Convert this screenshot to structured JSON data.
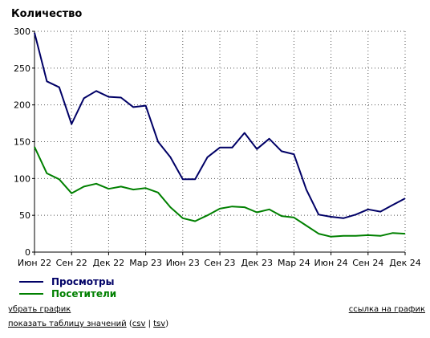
{
  "chart_data": {
    "type": "line",
    "title": "Количество",
    "x": [
      "2022-06",
      "2022-07",
      "2022-08",
      "2022-09",
      "2022-10",
      "2022-11",
      "2022-12",
      "2023-01",
      "2023-02",
      "2023-03",
      "2023-04",
      "2023-05",
      "2023-06",
      "2023-07",
      "2023-08",
      "2023-09",
      "2023-10",
      "2023-11",
      "2023-12",
      "2024-01",
      "2024-02",
      "2024-03",
      "2024-04",
      "2024-05",
      "2024-06",
      "2024-07",
      "2024-08",
      "2024-09",
      "2024-10",
      "2024-11",
      "2024-12"
    ],
    "x_tick_labels": [
      "Июн 22",
      "Сен 22",
      "Дек 22",
      "Мар 23",
      "Июн 23",
      "Сен 23",
      "Дек 23",
      "Мар 24",
      "Июн 24",
      "Сен 24",
      "Дек 24"
    ],
    "y_ticks": [
      0,
      50,
      100,
      150,
      200,
      250,
      300
    ],
    "ylim": [
      0,
      300
    ],
    "grid": true,
    "legend_position": "bottom-left",
    "series": [
      {
        "name": "Просмотры",
        "color": "#000066",
        "values": [
          298,
          232,
          224,
          174,
          209,
          219,
          211,
          210,
          197,
          199,
          150,
          129,
          99,
          99,
          129,
          142,
          142,
          162,
          140,
          154,
          137,
          133,
          85,
          51,
          48,
          46,
          51,
          58,
          55,
          64,
          73
        ]
      },
      {
        "name": "Посетители",
        "color": "#008000",
        "values": [
          143,
          107,
          99,
          80,
          89,
          93,
          86,
          89,
          85,
          87,
          81,
          61,
          46,
          42,
          50,
          59,
          62,
          61,
          54,
          58,
          49,
          47,
          36,
          25,
          21,
          22,
          22,
          23,
          22,
          26,
          25
        ]
      }
    ]
  },
  "links": {
    "hide_chart": "убрать график",
    "chart_link": "ссылка на график",
    "show_table": "показать таблицу значений",
    "csv": "csv",
    "tsv": "tsv",
    "open_paren": "(",
    "separator": " | ",
    "close_paren": ")"
  }
}
